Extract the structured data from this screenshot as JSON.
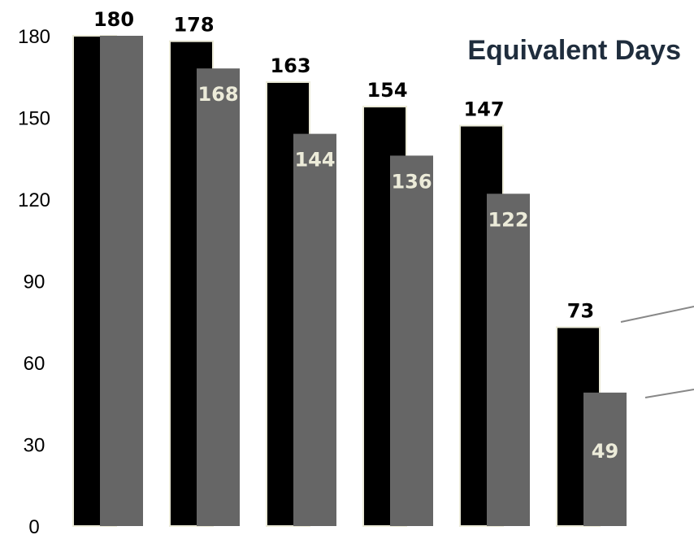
{
  "chart_data": {
    "type": "bar",
    "title": "Equivalent Days",
    "xlabel": "",
    "ylabel": "",
    "ylim": [
      0,
      180
    ],
    "yticks": [
      0,
      30,
      60,
      90,
      120,
      150,
      180
    ],
    "grid": false,
    "legend": "none",
    "series": [
      {
        "values": [
          180,
          178,
          163,
          154,
          147,
          73
        ],
        "color": "#000000",
        "label_color": "#000000"
      },
      {
        "values": [
          180,
          168,
          144,
          136,
          122,
          49
        ],
        "color": "#666666",
        "label_color": "#ecebd9"
      }
    ],
    "title_color": "#1f2d3d",
    "bar_outline_color": "#ecebd9"
  }
}
